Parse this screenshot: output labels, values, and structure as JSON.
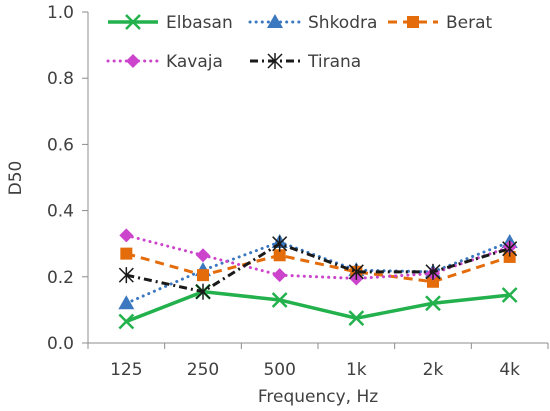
{
  "chart_data": {
    "type": "line",
    "xlabel": "Frequency, Hz",
    "ylabel": "D50",
    "categories": [
      "125",
      "250",
      "500",
      "1k",
      "2k",
      "4k"
    ],
    "ylim": [
      0.0,
      1.0
    ],
    "yticks": [
      "0.0",
      "0.2",
      "0.4",
      "0.6",
      "0.8",
      "1.0"
    ],
    "grid": false,
    "legend_position": "top",
    "series": [
      {
        "name": "Elbasan",
        "values": [
          0.065,
          0.155,
          0.13,
          0.075,
          0.12,
          0.145
        ],
        "color": "#22b14c",
        "dash": "solid",
        "marker": "x"
      },
      {
        "name": "Shkodra",
        "values": [
          0.12,
          0.22,
          0.305,
          0.22,
          0.215,
          0.305
        ],
        "color": "#3b78bf",
        "dash": "dotted",
        "marker": "triangle"
      },
      {
        "name": "Berat",
        "values": [
          0.27,
          0.205,
          0.265,
          0.215,
          0.185,
          0.26
        ],
        "color": "#e46c0a",
        "dash": "dashed",
        "marker": "square"
      },
      {
        "name": "Kavaja",
        "values": [
          0.325,
          0.265,
          0.205,
          0.195,
          0.21,
          0.29
        ],
        "color": "#cc44cc",
        "dash": "dotted",
        "marker": "diamond"
      },
      {
        "name": "Tirana",
        "values": [
          0.205,
          0.155,
          0.3,
          0.215,
          0.215,
          0.285
        ],
        "color": "#1a1a1a",
        "dash": "dashdot",
        "marker": "star"
      }
    ]
  }
}
